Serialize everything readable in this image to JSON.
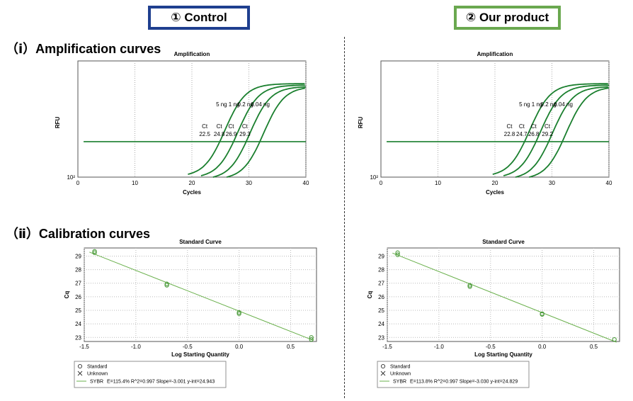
{
  "header": {
    "left_label": "① Control",
    "right_label": "② Our product",
    "left_color": "#1f3f8f",
    "right_color": "#6aa84f"
  },
  "sections": {
    "amplification": "（ⅰ）Amplification curves",
    "calibration": "（ⅱ）Calibration curves"
  },
  "chart_data": [
    {
      "id": "control-amplification",
      "type": "line",
      "title": "Amplification",
      "xlabel": "Cycles",
      "ylabel": "RFU",
      "xlim": [
        0,
        40
      ],
      "xticks": [
        "0",
        "10",
        "20",
        "30",
        "40"
      ],
      "y_scale": "log",
      "ytick_label": "10²",
      "threshold": true,
      "grid": "vertical-dotted",
      "series_color": "#1a7f2e",
      "concentration_labels": [
        "5 ng",
        "1 ng",
        "0.2 ng",
        "0.04 ng"
      ],
      "ct_label": "Ct",
      "ct_values": [
        22.5,
        24.8,
        26.9,
        29.3
      ],
      "ct_text": [
        "22.5",
        "24.8",
        "26.9",
        "29.3"
      ]
    },
    {
      "id": "product-amplification",
      "type": "line",
      "title": "Amplification",
      "xlabel": "Cycles",
      "ylabel": "RFU",
      "xlim": [
        0,
        40
      ],
      "xticks": [
        "0",
        "10",
        "20",
        "30",
        "40"
      ],
      "y_scale": "log",
      "ytick_label": "10²",
      "threshold": true,
      "grid": "vertical-dotted",
      "series_color": "#1a7f2e",
      "concentration_labels": [
        "5 ng",
        "1 ng",
        "0.2 ng",
        "0.04 ng"
      ],
      "ct_label": "Ct",
      "ct_values": [
        22.8,
        24.7,
        26.8,
        29.2
      ],
      "ct_text": [
        "22.8",
        "24.7",
        "26.8",
        "29.2"
      ]
    },
    {
      "id": "control-standard",
      "type": "scatter",
      "title": "Standard Curve",
      "xlabel": "Log Starting Quantity",
      "ylabel": "Cq",
      "xlim": [
        -1.5,
        0.75
      ],
      "ylim": [
        22.7,
        29.6
      ],
      "xticks": [
        "-1.5",
        "-1.0",
        "-0.5",
        "0.0",
        "0.5"
      ],
      "yticks": [
        "23",
        "24",
        "25",
        "26",
        "27",
        "28",
        "29"
      ],
      "grid": "dotted",
      "points": [
        {
          "x": -1.4,
          "y": 29.35
        },
        {
          "x": -1.4,
          "y": 29.25
        },
        {
          "x": -0.7,
          "y": 26.95
        },
        {
          "x": -0.7,
          "y": 26.85
        },
        {
          "x": 0.0,
          "y": 24.85
        },
        {
          "x": 0.0,
          "y": 24.75
        },
        {
          "x": 0.7,
          "y": 23.0
        },
        {
          "x": 0.7,
          "y": 22.85
        }
      ],
      "fit": {
        "slope": -3.001,
        "intercept": 24.943
      },
      "line_color": "#6ab04c",
      "legend": {
        "standard": "Standard",
        "unknown": "Unknown",
        "sybr": "SYBR",
        "stats": "E=115.4% R^2=0.997 Slope=-3.001 y-int=24.943"
      }
    },
    {
      "id": "product-standard",
      "type": "scatter",
      "title": "Standard Curve",
      "xlabel": "Log Starting Quantity",
      "ylabel": "Cq",
      "xlim": [
        -1.5,
        0.75
      ],
      "ylim": [
        22.7,
        29.6
      ],
      "xticks": [
        "-1.5",
        "-1.0",
        "-0.5",
        "0.0",
        "0.5"
      ],
      "yticks": [
        "23",
        "24",
        "25",
        "26",
        "27",
        "28",
        "29"
      ],
      "grid": "dotted",
      "points": [
        {
          "x": -1.4,
          "y": 29.25
        },
        {
          "x": -1.4,
          "y": 29.1
        },
        {
          "x": -0.7,
          "y": 26.85
        },
        {
          "x": -0.7,
          "y": 26.75
        },
        {
          "x": 0.0,
          "y": 24.75
        },
        {
          "x": 0.0,
          "y": 24.7
        },
        {
          "x": 0.7,
          "y": 22.85
        }
      ],
      "fit": {
        "slope": -3.03,
        "intercept": 24.829
      },
      "line_color": "#6ab04c",
      "legend": {
        "standard": "Standard",
        "unknown": "Unknown",
        "sybr": "SYBR",
        "stats": "E=113.8% R^2=0.997 Slope=-3.030 y-int=24.829"
      }
    }
  ]
}
